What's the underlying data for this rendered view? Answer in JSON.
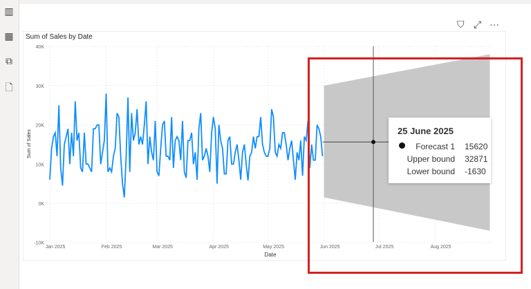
{
  "sidebar": {
    "icons": [
      "report-view-icon",
      "table-view-icon",
      "model-view-icon",
      "dax-query-icon"
    ]
  },
  "visual_header": {
    "icons": [
      "filter-icon",
      "focus-mode-icon",
      "more-options-icon"
    ],
    "more_label": "···"
  },
  "chart_data": {
    "type": "line",
    "title": "Sum of Sales by Date",
    "xlabel": "Date",
    "ylabel": "Sum of Sales",
    "ylim": [
      -10000,
      40000
    ],
    "yticks": [
      "-10K",
      "0K",
      "10K",
      "20K",
      "30K",
      "40K"
    ],
    "xticks": [
      "Jan 2025",
      "Feb 2025",
      "Mar 2025",
      "Apr 2025",
      "May 2025",
      "Jun 2025",
      "Jul 2025",
      "Aug 2025"
    ],
    "grid": true,
    "start_date": "2025-01-01",
    "series": [
      {
        "color": "#118dff",
        "values": [
          6000,
          14000,
          17000,
          18000,
          12000,
          25000,
          9000,
          4500,
          15000,
          17000,
          19000,
          10000,
          18000,
          12000,
          26000,
          16000,
          18000,
          9000,
          8000,
          18000,
          10000,
          10000,
          9000,
          8000,
          19000,
          19000,
          20000,
          20000,
          10000,
          13000,
          16000,
          28000,
          8000,
          9000,
          8000,
          12000,
          14000,
          23000,
          22000,
          12000,
          5000,
          1500,
          12000,
          27000,
          8000,
          23000,
          16000,
          18000,
          24000,
          15000,
          17000,
          15000,
          20000,
          26000,
          10000,
          17000,
          13000,
          11000,
          21000,
          8000,
          7000,
          14000,
          20000,
          21000,
          12000,
          12000,
          11000,
          22000,
          9000,
          16000,
          17000,
          16000,
          11000,
          21000,
          8000,
          6500,
          16000,
          16000,
          18000,
          10000,
          13000,
          6000,
          19000,
          23000,
          11000,
          12000,
          14000,
          12000,
          8000,
          18000,
          22000,
          19000,
          5000,
          20000,
          16000,
          14000,
          7500,
          7500,
          16000,
          17000,
          10000,
          10000,
          13000,
          15000,
          11000,
          6000,
          13000,
          15000,
          10000,
          5800,
          12000,
          13000,
          17000,
          14000,
          17000,
          17000,
          22000,
          15000,
          13000,
          12000,
          12000,
          14000,
          24000,
          22000,
          13000,
          12000,
          15000,
          14000,
          18000,
          18000,
          15000,
          11000,
          14000,
          16000,
          11000,
          6000,
          13000,
          11000,
          16000,
          7000,
          17000,
          16000,
          21000,
          9000,
          15000,
          11000,
          11000,
          20000,
          19000,
          17000,
          12000
        ]
      },
      {
        "name": "Forecast 1",
        "color": "#444444",
        "forecast_value": 15620,
        "upper_start": 30000,
        "upper_end": 38000,
        "lower_start": 1500,
        "lower_end": -7000,
        "band_color": "#c8c8c8"
      }
    ]
  },
  "tooltip": {
    "date": "25 June 2025",
    "rows": [
      {
        "label": "Forecast 1",
        "value": "15620"
      },
      {
        "label": "Upper bound",
        "value": "32871"
      },
      {
        "label": "Lower bound",
        "value": "-1630"
      }
    ]
  }
}
